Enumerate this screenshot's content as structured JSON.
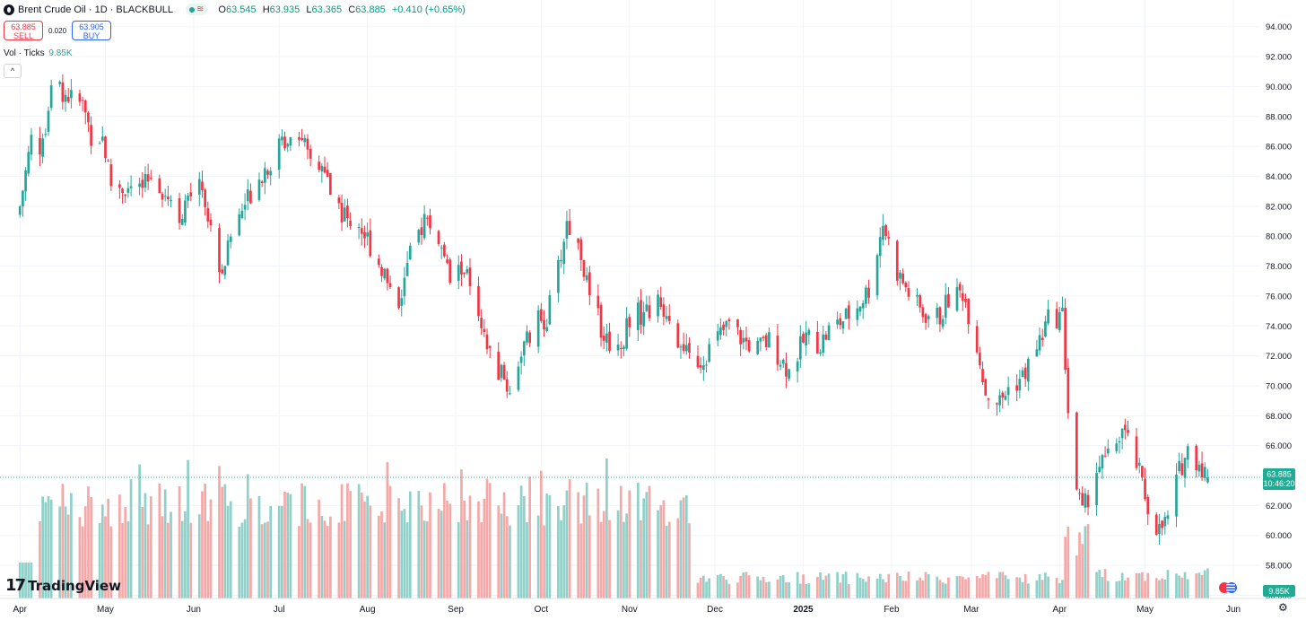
{
  "header": {
    "title": "Brent Crude Oil · 1D · BLACKBULL",
    "ohlc": [
      {
        "k": "O",
        "v": "63.545"
      },
      {
        "k": "H",
        "v": "63.935"
      },
      {
        "k": "L",
        "v": "63.365"
      },
      {
        "k": "C",
        "v": "63.885"
      }
    ],
    "change": "+0.410 (+0.65%)",
    "status_icon": "market-open-icon",
    "delay_icon": "wave-icon"
  },
  "trade": {
    "sell_price": "63.885",
    "sell_label": "SELL",
    "spread": "0.020",
    "buy_price": "63.905",
    "buy_label": "BUY"
  },
  "volume_legend": {
    "label": "Vol · Ticks",
    "value": "9.85K"
  },
  "last_price": {
    "value": "63.885",
    "countdown": "10:46:20",
    "volume": "9.85K"
  },
  "watermark": "TradingView",
  "colors": {
    "up": "#26a69a",
    "down": "#f23645",
    "vol_up": "#8fd0c9",
    "vol_down": "#f5a8a8",
    "label_bg": "#22ab94"
  },
  "chart_data": {
    "type": "candlestick",
    "y_ticks": [
      "94.000",
      "92.000",
      "90.000",
      "88.000",
      "86.000",
      "84.000",
      "82.000",
      "80.000",
      "78.000",
      "76.000",
      "74.000",
      "72.000",
      "70.000",
      "68.000",
      "66.000",
      "64.000",
      "62.000",
      "60.000",
      "58.000",
      "56.000"
    ],
    "x_ticks": [
      "Apr",
      "May",
      "Jun",
      "Jul",
      "Aug",
      "Sep",
      "Oct",
      "Nov",
      "Dec",
      "2025",
      "Feb",
      "Mar",
      "Apr",
      "May",
      "Jun"
    ],
    "ylim": [
      55.2,
      95.2
    ],
    "grid": true,
    "series": [
      {
        "date": "2024-04-01",
        "close": 82.0
      },
      {
        "date": "2024-04-05",
        "close": 86.5
      },
      {
        "date": "2024-04-09",
        "close": 85.8
      },
      {
        "date": "2024-04-12",
        "close": 90.5
      },
      {
        "date": "2024-04-16",
        "close": 89.7
      },
      {
        "date": "2024-04-19",
        "close": 89.2
      },
      {
        "date": "2024-04-23",
        "close": 88.8
      },
      {
        "date": "2024-04-26",
        "close": 86.8
      },
      {
        "date": "2024-04-30",
        "close": 86.6
      },
      {
        "date": "2024-05-03",
        "close": 83.5
      },
      {
        "date": "2024-05-08",
        "close": 83.2
      },
      {
        "date": "2024-05-13",
        "close": 82.9
      },
      {
        "date": "2024-05-17",
        "close": 83.9
      },
      {
        "date": "2024-05-22",
        "close": 83.0
      },
      {
        "date": "2024-05-28",
        "close": 81.3
      },
      {
        "date": "2024-06-03",
        "close": 84.4
      },
      {
        "date": "2024-06-07",
        "close": 80.2
      },
      {
        "date": "2024-06-11",
        "close": 77.6
      },
      {
        "date": "2024-06-14",
        "close": 80.0
      },
      {
        "date": "2024-06-19",
        "close": 82.2
      },
      {
        "date": "2024-06-24",
        "close": 84.1
      },
      {
        "date": "2024-06-28",
        "close": 85.0
      },
      {
        "date": "2024-07-03",
        "close": 86.5
      },
      {
        "date": "2024-07-08",
        "close": 87.2
      },
      {
        "date": "2024-07-11",
        "close": 85.2
      },
      {
        "date": "2024-07-16",
        "close": 84.5
      },
      {
        "date": "2024-07-19",
        "close": 83.1
      },
      {
        "date": "2024-07-24",
        "close": 81.3
      },
      {
        "date": "2024-07-29",
        "close": 80.8
      },
      {
        "date": "2024-08-02",
        "close": 79.4
      },
      {
        "date": "2024-08-06",
        "close": 77.9
      },
      {
        "date": "2024-08-12",
        "close": 75.6
      },
      {
        "date": "2024-08-16",
        "close": 78.6
      },
      {
        "date": "2024-08-21",
        "close": 81.2
      },
      {
        "date": "2024-08-26",
        "close": 79.8
      },
      {
        "date": "2024-08-30",
        "close": 77.0
      },
      {
        "date": "2024-09-04",
        "close": 78.0
      },
      {
        "date": "2024-09-10",
        "close": 73.3
      },
      {
        "date": "2024-09-16",
        "close": 71.0
      },
      {
        "date": "2024-09-20",
        "close": 69.7
      },
      {
        "date": "2024-09-24",
        "close": 72.3
      },
      {
        "date": "2024-09-30",
        "close": 74.3
      },
      {
        "date": "2024-10-03",
        "close": 74.5
      },
      {
        "date": "2024-10-07",
        "close": 77.8
      },
      {
        "date": "2024-10-10",
        "close": 80.9
      },
      {
        "date": "2024-10-15",
        "close": 78.9
      },
      {
        "date": "2024-10-18",
        "close": 75.7
      },
      {
        "date": "2024-10-24",
        "close": 73.1
      },
      {
        "date": "2024-10-29",
        "close": 72.6
      },
      {
        "date": "2024-11-01",
        "close": 74.7
      },
      {
        "date": "2024-11-06",
        "close": 74.9
      },
      {
        "date": "2024-11-11",
        "close": 75.4
      },
      {
        "date": "2024-11-15",
        "close": 74.9
      },
      {
        "date": "2024-11-20",
        "close": 72.0
      },
      {
        "date": "2024-11-26",
        "close": 71.7
      },
      {
        "date": "2024-12-02",
        "close": 73.2
      },
      {
        "date": "2024-12-06",
        "close": 74.1
      },
      {
        "date": "2024-12-11",
        "close": 73.0
      },
      {
        "date": "2024-12-16",
        "close": 72.5
      },
      {
        "date": "2024-12-20",
        "close": 73.0
      },
      {
        "date": "2024-12-27",
        "close": 71.0
      },
      {
        "date": "2025-01-02",
        "close": 73.3
      },
      {
        "date": "2025-01-07",
        "close": 72.8
      },
      {
        "date": "2025-01-10",
        "close": 73.7
      },
      {
        "date": "2025-01-15",
        "close": 74.4
      },
      {
        "date": "2025-01-20",
        "close": 75.3
      },
      {
        "date": "2025-01-24",
        "close": 76.5
      },
      {
        "date": "2025-01-29",
        "close": 80.9
      },
      {
        "date": "2025-02-03",
        "close": 77.6
      },
      {
        "date": "2025-02-07",
        "close": 76.2
      },
      {
        "date": "2025-02-12",
        "close": 74.8
      },
      {
        "date": "2025-02-18",
        "close": 74.6
      },
      {
        "date": "2025-02-21",
        "close": 75.8
      },
      {
        "date": "2025-02-26",
        "close": 76.3
      },
      {
        "date": "2025-03-03",
        "close": 72.8
      },
      {
        "date": "2025-03-06",
        "close": 69.6
      },
      {
        "date": "2025-03-11",
        "close": 68.9
      },
      {
        "date": "2025-03-14",
        "close": 69.8
      },
      {
        "date": "2025-03-19",
        "close": 70.6
      },
      {
        "date": "2025-03-24",
        "close": 72.5
      },
      {
        "date": "2025-03-28",
        "close": 74.4
      },
      {
        "date": "2025-04-02",
        "close": 74.7
      },
      {
        "date": "2025-04-04",
        "close": 68.4
      },
      {
        "date": "2025-04-07",
        "close": 63.1
      },
      {
        "date": "2025-04-09",
        "close": 61.4
      },
      {
        "date": "2025-04-14",
        "close": 64.5
      },
      {
        "date": "2025-04-18",
        "close": 65.1
      },
      {
        "date": "2025-04-23",
        "close": 67.1
      },
      {
        "date": "2025-04-28",
        "close": 64.8
      },
      {
        "date": "2025-05-02",
        "close": 61.9
      },
      {
        "date": "2025-05-06",
        "close": 60.3
      },
      {
        "date": "2025-05-09",
        "close": 61.1
      },
      {
        "date": "2025-05-13",
        "close": 64.3
      },
      {
        "date": "2025-05-16",
        "close": 65.7
      },
      {
        "date": "2025-05-20",
        "close": 64.9
      },
      {
        "date": "2025-05-23",
        "close": 63.885
      }
    ]
  }
}
